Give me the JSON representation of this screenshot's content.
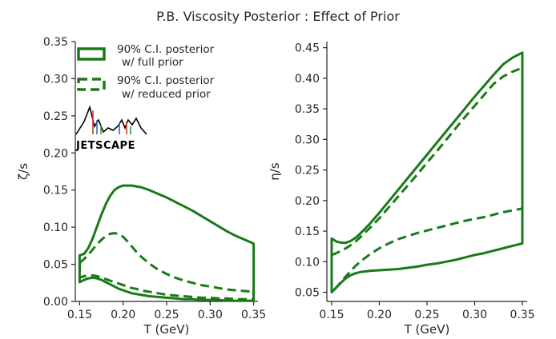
{
  "title": "P.B. Viscosity Posterior : Effect of Prior",
  "colors": {
    "band": "#1a7a1a",
    "axis": "#262626"
  },
  "logo": {
    "text": "JETSCAPE"
  },
  "chart_data": [
    {
      "type": "area",
      "xlabel": "T (GeV)",
      "ylabel": "ζ/s",
      "xlim": [
        0.145,
        0.355
      ],
      "ylim": [
        0.0,
        0.35
      ],
      "xticks": [
        0.15,
        0.2,
        0.25,
        0.3,
        0.35
      ],
      "yticks": [
        0.0,
        0.05,
        0.1,
        0.15,
        0.2,
        0.25,
        0.3,
        0.35
      ],
      "xtick_labels": [
        "0.15",
        "0.20",
        "0.25",
        "0.30",
        "0.35"
      ],
      "ytick_labels": [
        "0.00",
        "0.05",
        "0.10",
        "0.15",
        "0.20",
        "0.25",
        "0.30",
        "0.35"
      ],
      "grid": false,
      "legend": {
        "placement": "top-left",
        "entries": [
          {
            "label_line1": "90% C.I. posterior",
            "label_line2": "w/ full prior",
            "style": "solid"
          },
          {
            "label_line1": "90% C.I. posterior",
            "label_line2": "w/ reduced prior",
            "style": "dashed"
          }
        ]
      },
      "series": [
        {
          "name": "90% C.I. posterior w/ full prior",
          "style": "solid",
          "x": [
            0.15,
            0.155,
            0.16,
            0.165,
            0.17,
            0.175,
            0.18,
            0.185,
            0.19,
            0.195,
            0.2,
            0.205,
            0.21,
            0.215,
            0.22,
            0.23,
            0.24,
            0.25,
            0.26,
            0.27,
            0.28,
            0.29,
            0.3,
            0.31,
            0.32,
            0.33,
            0.34,
            0.35
          ],
          "upper": [
            0.062,
            0.064,
            0.072,
            0.085,
            0.101,
            0.117,
            0.131,
            0.142,
            0.15,
            0.154,
            0.156,
            0.156,
            0.156,
            0.155,
            0.154,
            0.15,
            0.145,
            0.14,
            0.134,
            0.128,
            0.122,
            0.115,
            0.108,
            0.101,
            0.094,
            0.088,
            0.083,
            0.078
          ],
          "lower": [
            0.026,
            0.029,
            0.031,
            0.032,
            0.031,
            0.029,
            0.026,
            0.023,
            0.02,
            0.017,
            0.015,
            0.013,
            0.011,
            0.01,
            0.009,
            0.007,
            0.006,
            0.005,
            0.004,
            0.003,
            0.003,
            0.002,
            0.002,
            0.002,
            0.001,
            0.001,
            0.001,
            0.001
          ]
        },
        {
          "name": "90% C.I. posterior w/ reduced prior",
          "style": "dashed",
          "x": [
            0.15,
            0.155,
            0.16,
            0.165,
            0.17,
            0.175,
            0.18,
            0.185,
            0.19,
            0.195,
            0.2,
            0.205,
            0.21,
            0.215,
            0.22,
            0.23,
            0.24,
            0.25,
            0.26,
            0.27,
            0.28,
            0.29,
            0.3,
            0.31,
            0.32,
            0.33,
            0.34,
            0.35
          ],
          "upper": [
            0.052,
            0.057,
            0.063,
            0.07,
            0.077,
            0.083,
            0.088,
            0.091,
            0.092,
            0.091,
            0.087,
            0.081,
            0.074,
            0.067,
            0.061,
            0.051,
            0.043,
            0.037,
            0.032,
            0.028,
            0.025,
            0.022,
            0.02,
            0.018,
            0.016,
            0.015,
            0.014,
            0.013
          ],
          "lower": [
            0.032,
            0.034,
            0.035,
            0.035,
            0.034,
            0.032,
            0.03,
            0.028,
            0.026,
            0.024,
            0.022,
            0.02,
            0.018,
            0.017,
            0.015,
            0.013,
            0.011,
            0.009,
            0.008,
            0.007,
            0.006,
            0.005,
            0.005,
            0.004,
            0.004,
            0.003,
            0.003,
            0.003
          ]
        }
      ]
    },
    {
      "type": "area",
      "xlabel": "T (GeV)",
      "ylabel": "η/s",
      "xlim": [
        0.145,
        0.355
      ],
      "ylim": [
        0.035,
        0.46
      ],
      "xticks": [
        0.15,
        0.2,
        0.25,
        0.3,
        0.35
      ],
      "yticks": [
        0.05,
        0.1,
        0.15,
        0.2,
        0.25,
        0.3,
        0.35,
        0.4,
        0.45
      ],
      "xtick_labels": [
        "0.15",
        "0.20",
        "0.25",
        "0.30",
        "0.35"
      ],
      "ytick_labels": [
        "0.05",
        "0.10",
        "0.15",
        "0.20",
        "0.25",
        "0.30",
        "0.35",
        "0.40",
        "0.45"
      ],
      "grid": false,
      "series": [
        {
          "name": "90% C.I. posterior w/ full prior",
          "style": "solid",
          "x": [
            0.15,
            0.155,
            0.16,
            0.165,
            0.17,
            0.175,
            0.18,
            0.19,
            0.2,
            0.21,
            0.22,
            0.23,
            0.24,
            0.25,
            0.26,
            0.27,
            0.28,
            0.29,
            0.3,
            0.31,
            0.32,
            0.33,
            0.34,
            0.35
          ],
          "upper": [
            0.138,
            0.133,
            0.131,
            0.131,
            0.134,
            0.139,
            0.146,
            0.162,
            0.18,
            0.199,
            0.218,
            0.237,
            0.256,
            0.275,
            0.294,
            0.313,
            0.332,
            0.351,
            0.37,
            0.388,
            0.406,
            0.423,
            0.434,
            0.442
          ],
          "lower": [
            0.05,
            0.058,
            0.066,
            0.073,
            0.078,
            0.081,
            0.083,
            0.085,
            0.086,
            0.087,
            0.088,
            0.09,
            0.092,
            0.095,
            0.097,
            0.1,
            0.103,
            0.107,
            0.111,
            0.114,
            0.118,
            0.122,
            0.126,
            0.13
          ]
        },
        {
          "name": "90% C.I. posterior w/ reduced prior",
          "style": "dashed",
          "x": [
            0.15,
            0.155,
            0.16,
            0.165,
            0.17,
            0.175,
            0.18,
            0.19,
            0.2,
            0.21,
            0.22,
            0.23,
            0.24,
            0.25,
            0.26,
            0.27,
            0.28,
            0.29,
            0.3,
            0.31,
            0.32,
            0.33,
            0.34,
            0.35
          ],
          "upper": [
            0.111,
            0.114,
            0.118,
            0.122,
            0.127,
            0.133,
            0.14,
            0.155,
            0.171,
            0.189,
            0.207,
            0.225,
            0.243,
            0.262,
            0.28,
            0.299,
            0.318,
            0.337,
            0.355,
            0.373,
            0.391,
            0.403,
            0.411,
            0.417
          ],
          "lower": [
            0.05,
            0.058,
            0.067,
            0.076,
            0.085,
            0.093,
            0.1,
            0.112,
            0.122,
            0.13,
            0.137,
            0.142,
            0.147,
            0.151,
            0.155,
            0.159,
            0.163,
            0.167,
            0.17,
            0.173,
            0.177,
            0.181,
            0.184,
            0.187
          ]
        }
      ]
    }
  ]
}
